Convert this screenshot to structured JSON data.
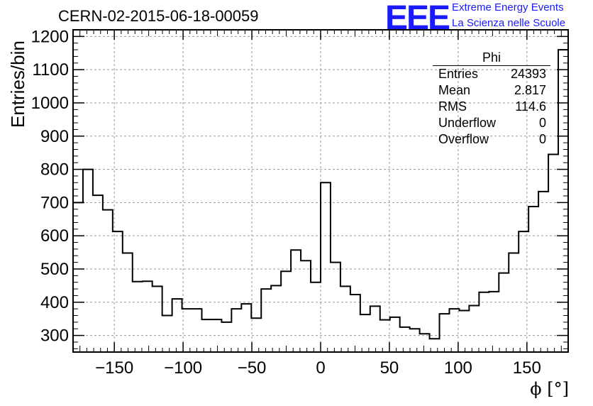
{
  "header": {
    "title": "CERN-02-2015-06-18-00059",
    "logo_text": "EEE",
    "logo_line1": "Extreme Energy Events",
    "logo_line2": "La Scienza nelle Scuole"
  },
  "stats_box": {
    "title": "Phi",
    "rows": [
      {
        "label": "Entries",
        "value": "24393"
      },
      {
        "label": "Mean",
        "value": "2.817"
      },
      {
        "label": "RMS",
        "value": "114.6"
      },
      {
        "label": "Underflow",
        "value": "0"
      },
      {
        "label": "Overflow",
        "value": "0"
      }
    ]
  },
  "chart_data": {
    "type": "bar",
    "style": "step-histogram",
    "title": "CERN-02-2015-06-18-00059",
    "xlabel": "ϕ [°]",
    "ylabel": "Entries/bin",
    "xlim": [
      -180,
      180
    ],
    "ylim": [
      250,
      1220
    ],
    "bin_width": 7.2,
    "xticks": [
      -150,
      -100,
      -50,
      0,
      50,
      100,
      150
    ],
    "xtick_labels": [
      "−150",
      "−100",
      "−50",
      "0",
      "50",
      "100",
      "150"
    ],
    "yticks": [
      300,
      400,
      500,
      600,
      700,
      800,
      900,
      1000,
      1100,
      1200
    ],
    "grid": true,
    "legend": "top-right stats box",
    "values": [
      700,
      800,
      722,
      678,
      613,
      548,
      462,
      463,
      448,
      360,
      410,
      380,
      380,
      348,
      348,
      340,
      380,
      395,
      352,
      440,
      450,
      493,
      557,
      525,
      460,
      760,
      520,
      448,
      423,
      363,
      388,
      347,
      355,
      325,
      320,
      305,
      290,
      365,
      380,
      375,
      390,
      430,
      432,
      488,
      548,
      613,
      688,
      733,
      845,
      1160
    ],
    "color": "#000000"
  }
}
